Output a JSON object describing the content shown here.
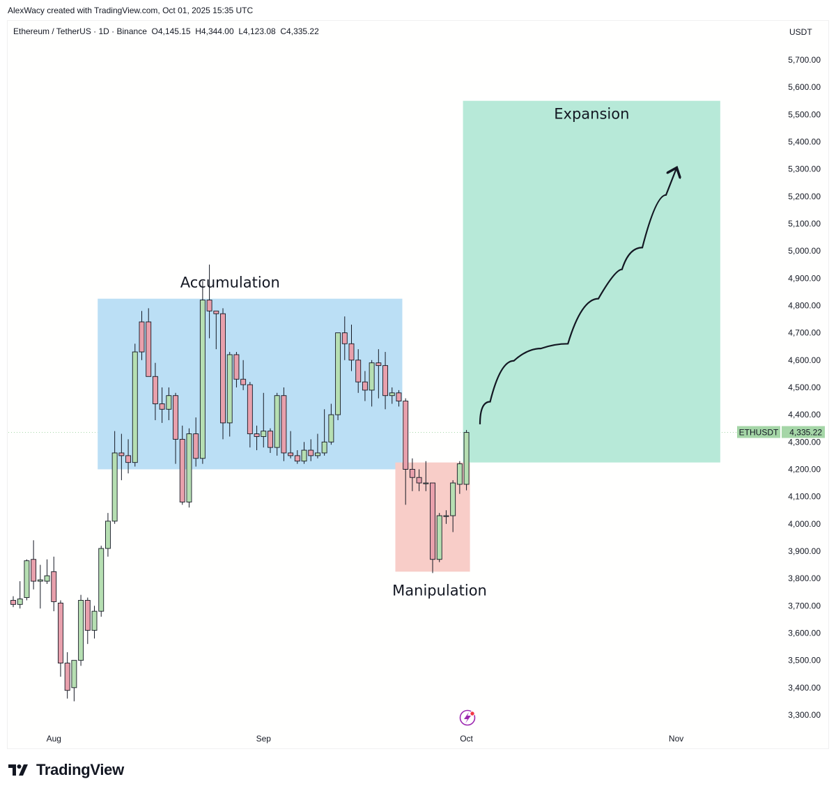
{
  "header": {
    "credit": "AlexWacy created with TradingView.com, Oct 01, 2025 15:35 UTC"
  },
  "symbol": {
    "name": "Ethereum / TetherUS · 1D · Binance",
    "open": "O4,145.15",
    "high": "H4,344.00",
    "low": "L4,123.08",
    "close": "C4,335.22"
  },
  "price_axis": {
    "unit": "USDT",
    "ticks": [
      "3,300.00",
      "3,400.00",
      "3,500.00",
      "3,600.00",
      "3,700.00",
      "3,800.00",
      "3,900.00",
      "4,000.00",
      "4,100.00",
      "4,200.00",
      "4,300.00",
      "4,400.00",
      "4,500.00",
      "4,600.00",
      "4,700.00",
      "4,800.00",
      "4,900.00",
      "5,000.00",
      "5,100.00",
      "5,200.00",
      "5,300.00",
      "5,400.00",
      "5,500.00",
      "5,600.00",
      "5,700.00"
    ]
  },
  "time_axis": {
    "ticks": [
      "Aug",
      "Sep",
      "Oct",
      "Nov"
    ]
  },
  "last_price": {
    "symbol_tag": "ETHUSDT",
    "value_tag": "4,335.22",
    "value": 4335.22
  },
  "zones": {
    "accumulation": {
      "label": "Accumulation",
      "color": "#bbdff5",
      "from": "2025-08-08",
      "to": "2025-09-21",
      "low": 4200,
      "high": 4825
    },
    "manipulation": {
      "label": "Manipulation",
      "color": "#f8cdc8",
      "from": "2025-09-21",
      "to": "2025-10-01",
      "low": 3825,
      "high": 4225
    },
    "expansion": {
      "label": "Expansion",
      "color": "#b7e9d8",
      "from": "2025-10-01",
      "to": "2025-11-07",
      "low": 4225,
      "high": 5550
    }
  },
  "colors": {
    "up_candle": "#b6dfb2",
    "down_candle": "#e8a0ac",
    "wick": "#131722",
    "arrow": "#131722",
    "price_tag": "#a5d6a7"
  },
  "brand": {
    "name": "TradingView"
  },
  "chart_data": {
    "type": "candlestick",
    "title": "Ethereum / TetherUS · 1D · Binance",
    "ylabel": "USDT",
    "ylim": [
      3260,
      5800
    ],
    "x_range": [
      "2025-07-26",
      "2025-11-12"
    ],
    "x_ticks": [
      "Aug",
      "Sep",
      "Oct",
      "Nov"
    ],
    "annotations": [
      "Accumulation",
      "Manipulation",
      "Expansion"
    ],
    "projection_path": [
      [
        "2025-10-03",
        4365
      ],
      [
        "2025-10-06",
        4530
      ],
      [
        "2025-10-10",
        4665
      ],
      [
        "2025-10-14",
        4620
      ],
      [
        "2025-10-18",
        4700
      ],
      [
        "2025-10-23",
        4950
      ],
      [
        "2025-10-25",
        4915
      ],
      [
        "2025-10-29",
        5110
      ],
      [
        "2025-11-01",
        5300
      ]
    ],
    "candles": [
      {
        "d": "2025-07-26",
        "o": 3720,
        "h": 3735,
        "l": 3695,
        "c": 3705
      },
      {
        "d": "2025-07-27",
        "o": 3705,
        "h": 3790,
        "l": 3690,
        "c": 3725
      },
      {
        "d": "2025-07-28",
        "o": 3730,
        "h": 3870,
        "l": 3720,
        "c": 3865
      },
      {
        "d": "2025-07-29",
        "o": 3870,
        "h": 3940,
        "l": 3760,
        "c": 3790
      },
      {
        "d": "2025-07-30",
        "o": 3790,
        "h": 3850,
        "l": 3690,
        "c": 3795
      },
      {
        "d": "2025-07-31",
        "o": 3790,
        "h": 3870,
        "l": 3780,
        "c": 3810
      },
      {
        "d": "2025-08-01",
        "o": 3825,
        "h": 3880,
        "l": 3680,
        "c": 3715
      },
      {
        "d": "2025-08-02",
        "o": 3710,
        "h": 3720,
        "l": 3440,
        "c": 3490
      },
      {
        "d": "2025-08-03",
        "o": 3490,
        "h": 3530,
        "l": 3360,
        "c": 3390
      },
      {
        "d": "2025-08-04",
        "o": 3400,
        "h": 3500,
        "l": 3350,
        "c": 3500
      },
      {
        "d": "2025-08-05",
        "o": 3500,
        "h": 3740,
        "l": 3480,
        "c": 3720
      },
      {
        "d": "2025-08-06",
        "o": 3720,
        "h": 3730,
        "l": 3560,
        "c": 3610
      },
      {
        "d": "2025-08-07",
        "o": 3610,
        "h": 3700,
        "l": 3580,
        "c": 3680
      },
      {
        "d": "2025-08-08",
        "o": 3680,
        "h": 3920,
        "l": 3660,
        "c": 3910
      },
      {
        "d": "2025-08-09",
        "o": 3910,
        "h": 4040,
        "l": 3880,
        "c": 4010
      },
      {
        "d": "2025-08-10",
        "o": 4010,
        "h": 4340,
        "l": 4000,
        "c": 4260
      },
      {
        "d": "2025-08-11",
        "o": 4260,
        "h": 4330,
        "l": 4160,
        "c": 4250
      },
      {
        "d": "2025-08-12",
        "o": 4250,
        "h": 4310,
        "l": 4185,
        "c": 4225
      },
      {
        "d": "2025-08-13",
        "o": 4225,
        "h": 4660,
        "l": 4210,
        "c": 4630
      },
      {
        "d": "2025-08-14",
        "o": 4740,
        "h": 4780,
        "l": 4600,
        "c": 4630
      },
      {
        "d": "2025-08-15",
        "o": 4740,
        "h": 4790,
        "l": 4550,
        "c": 4540
      },
      {
        "d": "2025-08-16",
        "o": 4540,
        "h": 4590,
        "l": 4380,
        "c": 4440
      },
      {
        "d": "2025-08-17",
        "o": 4440,
        "h": 4500,
        "l": 4370,
        "c": 4420
      },
      {
        "d": "2025-08-18",
        "o": 4420,
        "h": 4500,
        "l": 4380,
        "c": 4470
      },
      {
        "d": "2025-08-19",
        "o": 4470,
        "h": 4480,
        "l": 4220,
        "c": 4310
      },
      {
        "d": "2025-08-20",
        "o": 4310,
        "h": 4360,
        "l": 4070,
        "c": 4080
      },
      {
        "d": "2025-08-21",
        "o": 4080,
        "h": 4350,
        "l": 4060,
        "c": 4330
      },
      {
        "d": "2025-08-22",
        "o": 4330,
        "h": 4390,
        "l": 4210,
        "c": 4240
      },
      {
        "d": "2025-08-23",
        "o": 4240,
        "h": 4890,
        "l": 4220,
        "c": 4820
      },
      {
        "d": "2025-08-24",
        "o": 4820,
        "h": 4950,
        "l": 4680,
        "c": 4780
      },
      {
        "d": "2025-08-25",
        "o": 4780,
        "h": 4780,
        "l": 4640,
        "c": 4770
      },
      {
        "d": "2025-08-26",
        "o": 4770,
        "h": 4790,
        "l": 4310,
        "c": 4370
      },
      {
        "d": "2025-08-27",
        "o": 4370,
        "h": 4630,
        "l": 4320,
        "c": 4620
      },
      {
        "d": "2025-08-28",
        "o": 4620,
        "h": 4630,
        "l": 4500,
        "c": 4530
      },
      {
        "d": "2025-08-29",
        "o": 4530,
        "h": 4600,
        "l": 4490,
        "c": 4510
      },
      {
        "d": "2025-08-30",
        "o": 4510,
        "h": 4520,
        "l": 4280,
        "c": 4330
      },
      {
        "d": "2025-08-31",
        "o": 4330,
        "h": 4360,
        "l": 4270,
        "c": 4320
      },
      {
        "d": "2025-09-01",
        "o": 4320,
        "h": 4480,
        "l": 4280,
        "c": 4340
      },
      {
        "d": "2025-09-02",
        "o": 4340,
        "h": 4350,
        "l": 4260,
        "c": 4280
      },
      {
        "d": "2025-09-03",
        "o": 4280,
        "h": 4480,
        "l": 4250,
        "c": 4470
      },
      {
        "d": "2025-09-04",
        "o": 4470,
        "h": 4500,
        "l": 4230,
        "c": 4260
      },
      {
        "d": "2025-09-05",
        "o": 4260,
        "h": 4340,
        "l": 4240,
        "c": 4250
      },
      {
        "d": "2025-09-06",
        "o": 4250,
        "h": 4270,
        "l": 4220,
        "c": 4230
      },
      {
        "d": "2025-09-07",
        "o": 4230,
        "h": 4300,
        "l": 4220,
        "c": 4270
      },
      {
        "d": "2025-09-08",
        "o": 4270,
        "h": 4310,
        "l": 4230,
        "c": 4250
      },
      {
        "d": "2025-09-09",
        "o": 4250,
        "h": 4330,
        "l": 4240,
        "c": 4260
      },
      {
        "d": "2025-09-10",
        "o": 4260,
        "h": 4420,
        "l": 4250,
        "c": 4300
      },
      {
        "d": "2025-09-11",
        "o": 4300,
        "h": 4440,
        "l": 4290,
        "c": 4400
      },
      {
        "d": "2025-09-12",
        "o": 4400,
        "h": 4690,
        "l": 4380,
        "c": 4700
      },
      {
        "d": "2025-09-13",
        "o": 4700,
        "h": 4760,
        "l": 4600,
        "c": 4660
      },
      {
        "d": "2025-09-14",
        "o": 4660,
        "h": 4730,
        "l": 4560,
        "c": 4600
      },
      {
        "d": "2025-09-15",
        "o": 4600,
        "h": 4640,
        "l": 4480,
        "c": 4520
      },
      {
        "d": "2025-09-16",
        "o": 4520,
        "h": 4560,
        "l": 4450,
        "c": 4490
      },
      {
        "d": "2025-09-17",
        "o": 4490,
        "h": 4600,
        "l": 4430,
        "c": 4590
      },
      {
        "d": "2025-09-18",
        "o": 4590,
        "h": 4640,
        "l": 4460,
        "c": 4580
      },
      {
        "d": "2025-09-19",
        "o": 4580,
        "h": 4630,
        "l": 4420,
        "c": 4470
      },
      {
        "d": "2025-09-20",
        "o": 4470,
        "h": 4500,
        "l": 4440,
        "c": 4480
      },
      {
        "d": "2025-09-21",
        "o": 4480,
        "h": 4490,
        "l": 4430,
        "c": 4450
      },
      {
        "d": "2025-09-22",
        "o": 4450,
        "h": 4460,
        "l": 4070,
        "c": 4200
      },
      {
        "d": "2025-09-23",
        "o": 4200,
        "h": 4240,
        "l": 4120,
        "c": 4170
      },
      {
        "d": "2025-09-24",
        "o": 4170,
        "h": 4200,
        "l": 4120,
        "c": 4150
      },
      {
        "d": "2025-09-25",
        "o": 4150,
        "h": 4230,
        "l": 4120,
        "c": 4150
      },
      {
        "d": "2025-09-26",
        "o": 4150,
        "h": 4150,
        "l": 3820,
        "c": 3870
      },
      {
        "d": "2025-09-27",
        "o": 3870,
        "h": 4040,
        "l": 3860,
        "c": 4030
      },
      {
        "d": "2025-09-28",
        "o": 4030,
        "h": 4050,
        "l": 4000,
        "c": 4030
      },
      {
        "d": "2025-09-29",
        "o": 4030,
        "h": 4160,
        "l": 3970,
        "c": 4150
      },
      {
        "d": "2025-09-30",
        "o": 4145,
        "h": 4230,
        "l": 4110,
        "c": 4220
      },
      {
        "d": "2025-10-01",
        "o": 4145,
        "h": 4344,
        "l": 4123,
        "c": 4335
      }
    ]
  }
}
